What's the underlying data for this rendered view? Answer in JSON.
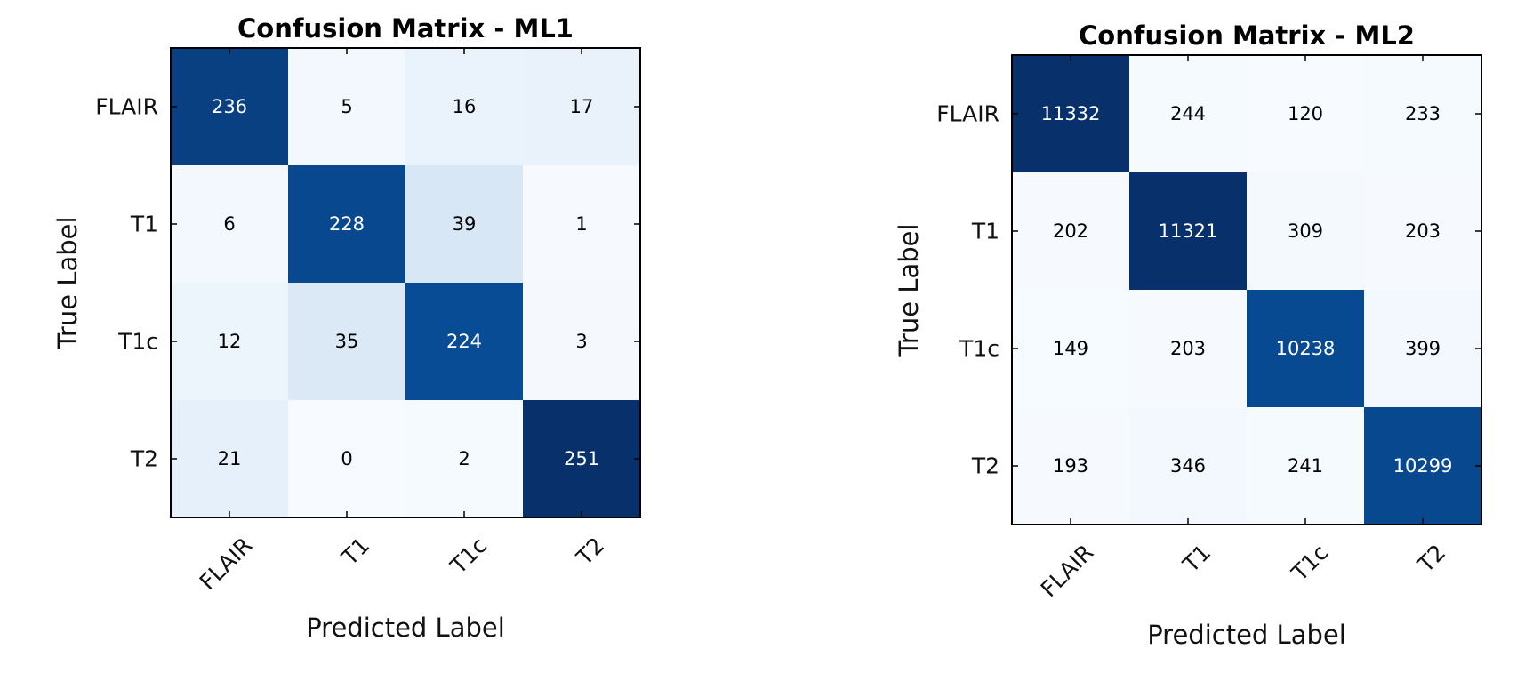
{
  "chart_data": [
    {
      "type": "heatmap",
      "title": "Confusion Matrix - ML1",
      "xlabel": "Predicted Label",
      "ylabel": "True Label",
      "x_categories": [
        "FLAIR",
        "T1",
        "T1c",
        "T2"
      ],
      "y_categories": [
        "FLAIR",
        "T1",
        "T1c",
        "T2"
      ],
      "values": [
        [
          236,
          5,
          16,
          17
        ],
        [
          6,
          228,
          39,
          1
        ],
        [
          12,
          35,
          224,
          3
        ],
        [
          21,
          0,
          2,
          251
        ]
      ],
      "colormap": "Blues",
      "grid": false
    },
    {
      "type": "heatmap",
      "title": "Confusion Matrix - ML2",
      "xlabel": "Predicted Label",
      "ylabel": "True Label",
      "x_categories": [
        "FLAIR",
        "T1",
        "T1c",
        "T2"
      ],
      "y_categories": [
        "FLAIR",
        "T1",
        "T1c",
        "T2"
      ],
      "values": [
        [
          11332,
          244,
          120,
          233
        ],
        [
          202,
          11321,
          309,
          203
        ],
        [
          149,
          203,
          10238,
          399
        ],
        [
          193,
          346,
          241,
          10299
        ]
      ],
      "colormap": "Blues",
      "grid": false
    }
  ]
}
